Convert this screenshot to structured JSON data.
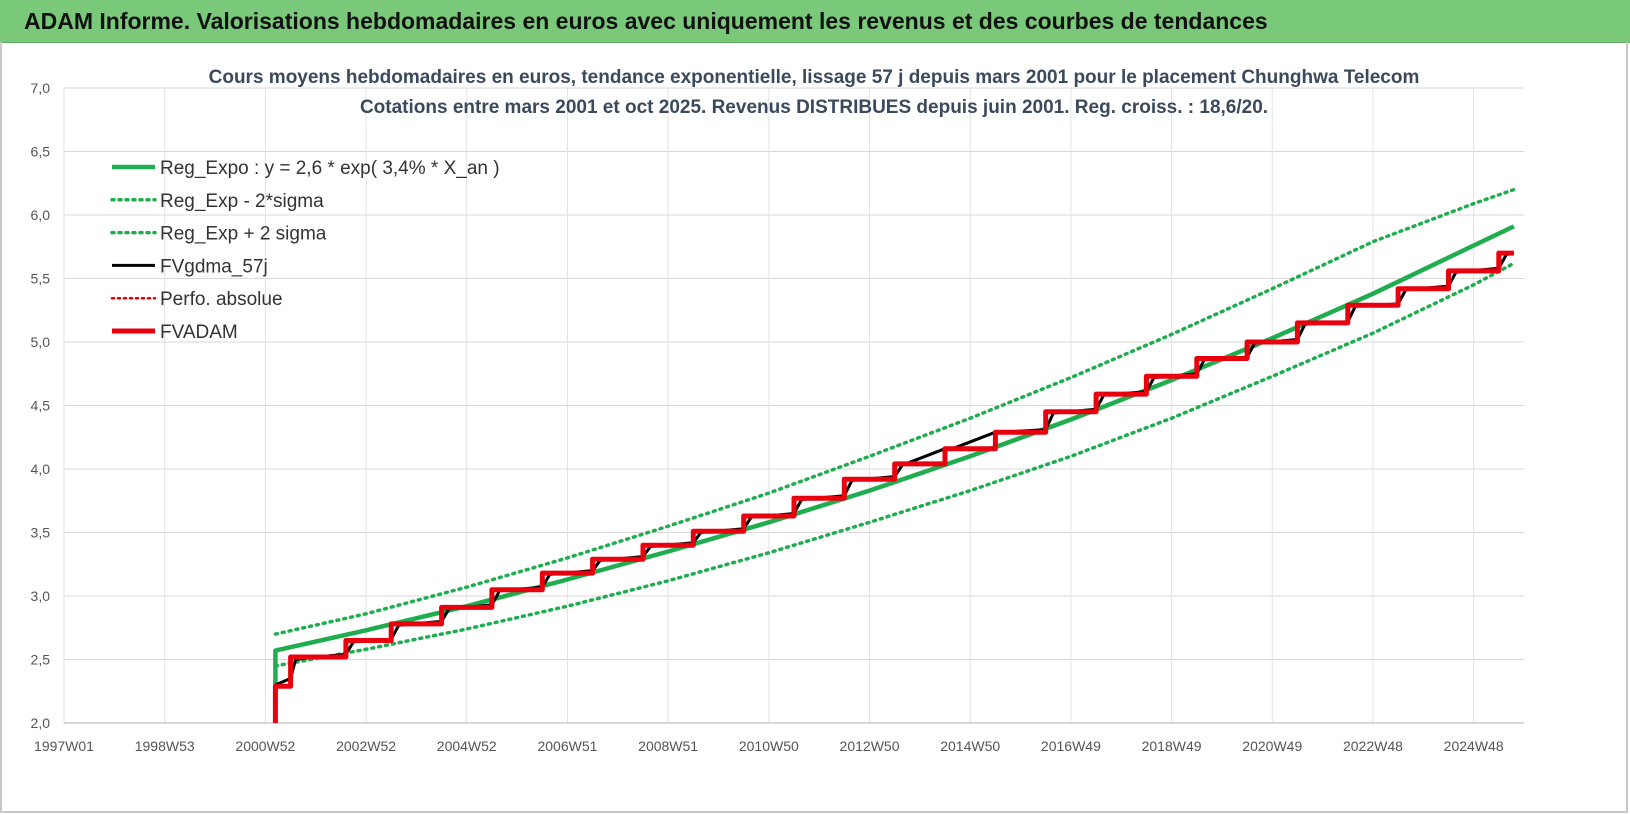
{
  "header": {
    "title": "ADAM Informe. Valorisations hebdomadaires en euros avec uniquement les revenus et des courbes de tendances"
  },
  "chart_data": {
    "type": "line",
    "title": "Cours moyens hebdomadaires en euros, tendance exponentielle, lissage 57 j depuis mars 2001 pour le placement Chunghwa Telecom",
    "subtitle": "Cotations entre mars 2001 et oct 2025.  Revenus DISTRIBUES depuis juin 2001. Reg. croiss. : 18,6/20.",
    "xlabel": "",
    "ylabel": "",
    "ylim": [
      2.0,
      7.0
    ],
    "yticks": [
      "2,0",
      "2,5",
      "3,0",
      "3,5",
      "4,0",
      "4,5",
      "5,0",
      "5,5",
      "6,0",
      "6,5",
      "7,0"
    ],
    "xlim": [
      1997.0,
      2026.0
    ],
    "xticks": [
      {
        "label": "1997W01",
        "year": 1997.0
      },
      {
        "label": "1998W53",
        "year": 1999.0
      },
      {
        "label": "2000W52",
        "year": 2001.0
      },
      {
        "label": "2002W52",
        "year": 2003.0
      },
      {
        "label": "2004W52",
        "year": 2005.0
      },
      {
        "label": "2006W51",
        "year": 2007.0
      },
      {
        "label": "2008W51",
        "year": 2009.0
      },
      {
        "label": "2010W50",
        "year": 2011.0
      },
      {
        "label": "2012W50",
        "year": 2013.0
      },
      {
        "label": "2014W50",
        "year": 2015.0
      },
      {
        "label": "2016W49",
        "year": 2017.0
      },
      {
        "label": "2018W49",
        "year": 2019.0
      },
      {
        "label": "2020W49",
        "year": 2021.0
      },
      {
        "label": "2022W48",
        "year": 2023.0
      },
      {
        "label": "2024W48",
        "year": 2025.0
      }
    ],
    "grid": true,
    "legend_position": "top-left",
    "series": [
      {
        "name": "Reg_Expo : y = 2,6 * exp( 3,4% *  X_an )",
        "color": "#1fad4f",
        "style": "solid",
        "points": [
          [
            2001.2,
            2.0
          ],
          [
            2001.2,
            2.57
          ],
          [
            2003.0,
            2.73
          ],
          [
            2005.0,
            2.92
          ],
          [
            2007.0,
            3.13
          ],
          [
            2009.0,
            3.35
          ],
          [
            2011.0,
            3.58
          ],
          [
            2013.0,
            3.83
          ],
          [
            2015.0,
            4.1
          ],
          [
            2017.0,
            4.39
          ],
          [
            2019.0,
            4.7
          ],
          [
            2021.0,
            5.03
          ],
          [
            2023.0,
            5.38
          ],
          [
            2025.0,
            5.76
          ],
          [
            2025.8,
            5.91
          ]
        ]
      },
      {
        "name": "Reg_Exp - 2*sigma",
        "color": "#1fad4f",
        "style": "dotted",
        "points": [
          [
            2001.2,
            2.45
          ],
          [
            2003.0,
            2.58
          ],
          [
            2005.0,
            2.74
          ],
          [
            2007.0,
            2.92
          ],
          [
            2009.0,
            3.12
          ],
          [
            2011.0,
            3.34
          ],
          [
            2013.0,
            3.58
          ],
          [
            2015.0,
            3.83
          ],
          [
            2017.0,
            4.1
          ],
          [
            2019.0,
            4.4
          ],
          [
            2021.0,
            4.73
          ],
          [
            2023.0,
            5.07
          ],
          [
            2025.0,
            5.45
          ],
          [
            2025.8,
            5.62
          ]
        ]
      },
      {
        "name": "Reg_Exp + 2 sigma",
        "color": "#1fad4f",
        "style": "dotted",
        "points": [
          [
            2001.2,
            2.7
          ],
          [
            2003.0,
            2.86
          ],
          [
            2005.0,
            3.07
          ],
          [
            2007.0,
            3.3
          ],
          [
            2009.0,
            3.55
          ],
          [
            2011.0,
            3.81
          ],
          [
            2013.0,
            4.1
          ],
          [
            2015.0,
            4.4
          ],
          [
            2017.0,
            4.72
          ],
          [
            2019.0,
            5.06
          ],
          [
            2021.0,
            5.42
          ],
          [
            2023.0,
            5.79
          ],
          [
            2025.0,
            6.09
          ],
          [
            2025.8,
            6.2
          ]
        ]
      },
      {
        "name": "FVgdma_57j",
        "color": "#000000",
        "style": "solid",
        "points": [
          [
            2001.2,
            2.3
          ],
          [
            2001.5,
            2.35
          ],
          [
            2001.6,
            2.5
          ],
          [
            2002.0,
            2.52
          ],
          [
            2002.6,
            2.54
          ],
          [
            2002.75,
            2.64
          ],
          [
            2003.5,
            2.66
          ],
          [
            2003.65,
            2.77
          ],
          [
            2004.5,
            2.8
          ],
          [
            2004.65,
            2.9
          ],
          [
            2005.5,
            2.93
          ],
          [
            2005.65,
            3.04
          ],
          [
            2006.5,
            3.07
          ],
          [
            2006.65,
            3.17
          ],
          [
            2007.5,
            3.2
          ],
          [
            2007.65,
            3.28
          ],
          [
            2008.5,
            3.31
          ],
          [
            2008.65,
            3.39
          ],
          [
            2009.5,
            3.42
          ],
          [
            2009.65,
            3.5
          ],
          [
            2010.5,
            3.53
          ],
          [
            2010.65,
            3.62
          ],
          [
            2011.5,
            3.65
          ],
          [
            2011.65,
            3.76
          ],
          [
            2012.5,
            3.79
          ],
          [
            2012.65,
            3.91
          ],
          [
            2013.5,
            3.94
          ],
          [
            2013.65,
            4.03
          ],
          [
            2014.5,
            4.16
          ],
          [
            2014.65,
            4.16
          ],
          [
            2015.5,
            4.29
          ],
          [
            2015.65,
            4.29
          ],
          [
            2016.5,
            4.31
          ],
          [
            2016.65,
            4.44
          ],
          [
            2017.5,
            4.47
          ],
          [
            2017.65,
            4.58
          ],
          [
            2018.5,
            4.61
          ],
          [
            2018.65,
            4.72
          ],
          [
            2019.5,
            4.75
          ],
          [
            2019.65,
            4.86
          ],
          [
            2020.5,
            4.88
          ],
          [
            2020.65,
            4.99
          ],
          [
            2021.5,
            5.02
          ],
          [
            2021.65,
            5.14
          ],
          [
            2022.5,
            5.16
          ],
          [
            2022.65,
            5.28
          ],
          [
            2023.5,
            5.3
          ],
          [
            2023.65,
            5.41
          ],
          [
            2024.5,
            5.44
          ],
          [
            2024.65,
            5.55
          ],
          [
            2025.5,
            5.58
          ],
          [
            2025.65,
            5.69
          ],
          [
            2025.8,
            5.7
          ]
        ]
      },
      {
        "name": "Perfo. absolue",
        "color": "#dd0000",
        "style": "dotted",
        "points": []
      },
      {
        "name": "FVADAM",
        "color": "#e8000f",
        "style": "solid",
        "points": [
          [
            2001.2,
            2.0
          ],
          [
            2001.2,
            2.29
          ],
          [
            2001.5,
            2.29
          ],
          [
            2001.5,
            2.52
          ],
          [
            2002.6,
            2.52
          ],
          [
            2002.6,
            2.65
          ],
          [
            2003.5,
            2.65
          ],
          [
            2003.5,
            2.78
          ],
          [
            2004.5,
            2.78
          ],
          [
            2004.5,
            2.91
          ],
          [
            2005.5,
            2.91
          ],
          [
            2005.5,
            3.05
          ],
          [
            2006.5,
            3.05
          ],
          [
            2006.5,
            3.18
          ],
          [
            2007.5,
            3.18
          ],
          [
            2007.5,
            3.29
          ],
          [
            2008.5,
            3.29
          ],
          [
            2008.5,
            3.4
          ],
          [
            2009.5,
            3.4
          ],
          [
            2009.5,
            3.51
          ],
          [
            2010.5,
            3.51
          ],
          [
            2010.5,
            3.63
          ],
          [
            2011.5,
            3.63
          ],
          [
            2011.5,
            3.77
          ],
          [
            2012.5,
            3.77
          ],
          [
            2012.5,
            3.92
          ],
          [
            2013.5,
            3.92
          ],
          [
            2013.5,
            4.04
          ],
          [
            2014.5,
            4.04
          ],
          [
            2014.5,
            4.16
          ],
          [
            2015.5,
            4.16
          ],
          [
            2015.5,
            4.29
          ],
          [
            2016.5,
            4.29
          ],
          [
            2016.5,
            4.45
          ],
          [
            2017.5,
            4.45
          ],
          [
            2017.5,
            4.59
          ],
          [
            2018.5,
            4.59
          ],
          [
            2018.5,
            4.73
          ],
          [
            2019.5,
            4.73
          ],
          [
            2019.5,
            4.87
          ],
          [
            2020.5,
            4.87
          ],
          [
            2020.5,
            5.0
          ],
          [
            2021.5,
            5.0
          ],
          [
            2021.5,
            5.15
          ],
          [
            2022.5,
            5.15
          ],
          [
            2022.5,
            5.29
          ],
          [
            2023.5,
            5.29
          ],
          [
            2023.5,
            5.42
          ],
          [
            2024.5,
            5.42
          ],
          [
            2024.5,
            5.56
          ],
          [
            2025.5,
            5.56
          ],
          [
            2025.5,
            5.7
          ],
          [
            2025.8,
            5.7
          ]
        ]
      }
    ]
  }
}
